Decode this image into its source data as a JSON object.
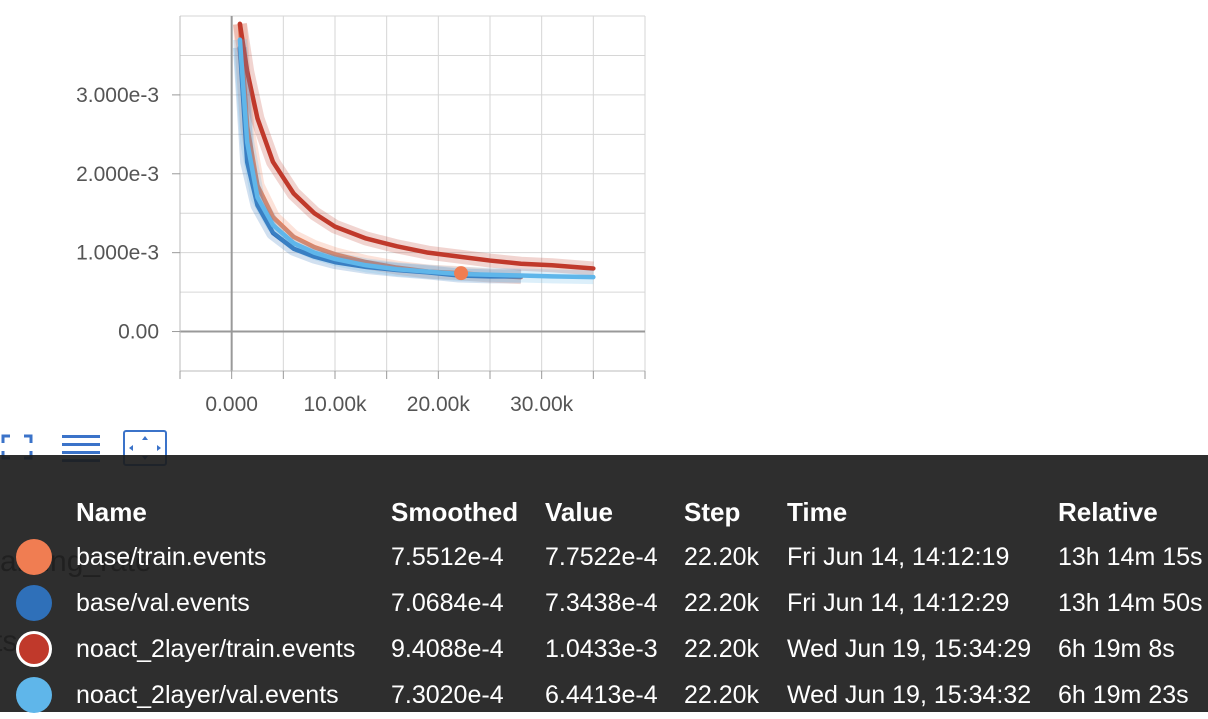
{
  "chart_data": {
    "type": "line",
    "title": "",
    "xlabel": "",
    "ylabel": "",
    "xlim": [
      -5000,
      40000
    ],
    "ylim": [
      -500,
      4000
    ],
    "x_ticks": [
      "0.000",
      "10.00k",
      "20.00k",
      "30.00k"
    ],
    "y_ticks": [
      "0.00",
      "1.000e-3",
      "2.000e-3",
      "3.000e-3"
    ],
    "grid": true,
    "series": [
      {
        "name": "base/train.events",
        "color": "#f07d52",
        "x": [
          800,
          1500,
          2500,
          4000,
          6000,
          8000,
          10000,
          13000,
          16000,
          19000,
          22000,
          25000,
          28000
        ],
        "values": [
          3900,
          2600,
          1850,
          1450,
          1200,
          1070,
          980,
          880,
          810,
          760,
          740,
          710,
          690
        ]
      },
      {
        "name": "base/val.events",
        "color": "#2f70b9",
        "x": [
          800,
          1500,
          2500,
          4000,
          6000,
          8000,
          10000,
          13000,
          16000,
          19000,
          22000,
          25000,
          28000
        ],
        "values": [
          3600,
          2150,
          1600,
          1250,
          1050,
          950,
          880,
          820,
          780,
          750,
          710,
          700,
          700
        ]
      },
      {
        "name": "noact_2layer/train.events",
        "color": "#c0392b",
        "x": [
          800,
          1500,
          2500,
          4000,
          6000,
          8000,
          10000,
          13000,
          16000,
          19000,
          22000,
          25000,
          28000,
          31000,
          35000
        ],
        "values": [
          3900,
          3300,
          2700,
          2150,
          1750,
          1500,
          1330,
          1180,
          1080,
          1000,
          950,
          900,
          860,
          840,
          800
        ]
      },
      {
        "name": "noact_2layer/val.events",
        "color": "#5fb6ea",
        "x": [
          800,
          1500,
          2500,
          4000,
          6000,
          8000,
          10000,
          13000,
          16000,
          19000,
          22000,
          25000,
          28000,
          31000,
          35000
        ],
        "values": [
          3700,
          2400,
          1700,
          1350,
          1120,
          1000,
          920,
          840,
          790,
          760,
          730,
          720,
          710,
          700,
          690
        ]
      }
    ]
  },
  "legend_ghost": {
    "line1": "arning_rate",
    "line2": "ts"
  },
  "tooltip": {
    "headers": {
      "name": "Name",
      "smoothed": "Smoothed",
      "value": "Value",
      "step": "Step",
      "time": "Time",
      "relative": "Relative"
    },
    "rows": [
      {
        "name": "base/train.events",
        "smoothed": "7.5512e-4",
        "value": "7.7522e-4",
        "step": "22.20k",
        "time": "Fri Jun 14, 14:12:19",
        "relative": "13h 14m 15s",
        "color": "#f07d52",
        "ring": false
      },
      {
        "name": "base/val.events",
        "smoothed": "7.0684e-4",
        "value": "7.3438e-4",
        "step": "22.20k",
        "time": "Fri Jun 14, 14:12:29",
        "relative": "13h 14m 50s",
        "color": "#2f70b9",
        "ring": false
      },
      {
        "name": "noact_2layer/train.events",
        "smoothed": "9.4088e-4",
        "value": "1.0433e-3",
        "step": "22.20k",
        "time": "Wed Jun 19, 15:34:29",
        "relative": "6h 19m 8s",
        "color": "#c0392b",
        "ring": true
      },
      {
        "name": "noact_2layer/val.events",
        "smoothed": "7.3020e-4",
        "value": "6.4413e-4",
        "step": "22.20k",
        "time": "Wed Jun 19, 15:34:32",
        "relative": "6h 19m 23s",
        "color": "#5fb6ea",
        "ring": false
      }
    ]
  }
}
